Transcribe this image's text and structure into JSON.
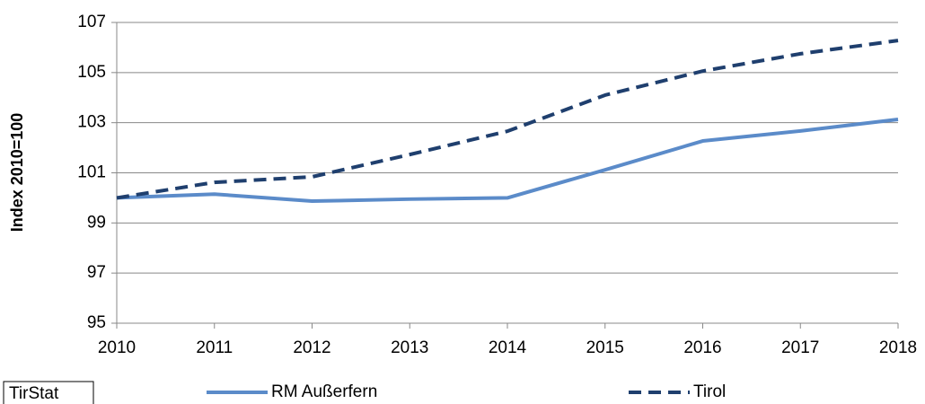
{
  "chart_data": {
    "type": "line",
    "y_label": "Index 2010=100",
    "x": [
      2010,
      2011,
      2012,
      2013,
      2014,
      2015,
      2016,
      2017,
      2018
    ],
    "series": [
      {
        "name": "RM Außerfern",
        "color": "#5b8bc9",
        "style": "solid",
        "values": [
          100.0,
          100.15,
          99.87,
          99.95,
          100.0,
          101.12,
          102.27,
          102.67,
          103.13
        ]
      },
      {
        "name": "Tirol",
        "color": "#1f3f6e",
        "style": "dashed",
        "values": [
          100.0,
          100.62,
          100.84,
          101.73,
          102.66,
          104.1,
          105.06,
          105.75,
          106.28
        ]
      }
    ],
    "xlim": [
      2010,
      2018
    ],
    "xticks": [
      2010,
      2011,
      2012,
      2013,
      2014,
      2015,
      2016,
      2017,
      2018
    ],
    "ylim": [
      95,
      107
    ],
    "yticks": [
      95,
      97,
      99,
      101,
      103,
      105,
      107
    ],
    "grid": true,
    "legend": "bottom",
    "source": "TirStat"
  }
}
